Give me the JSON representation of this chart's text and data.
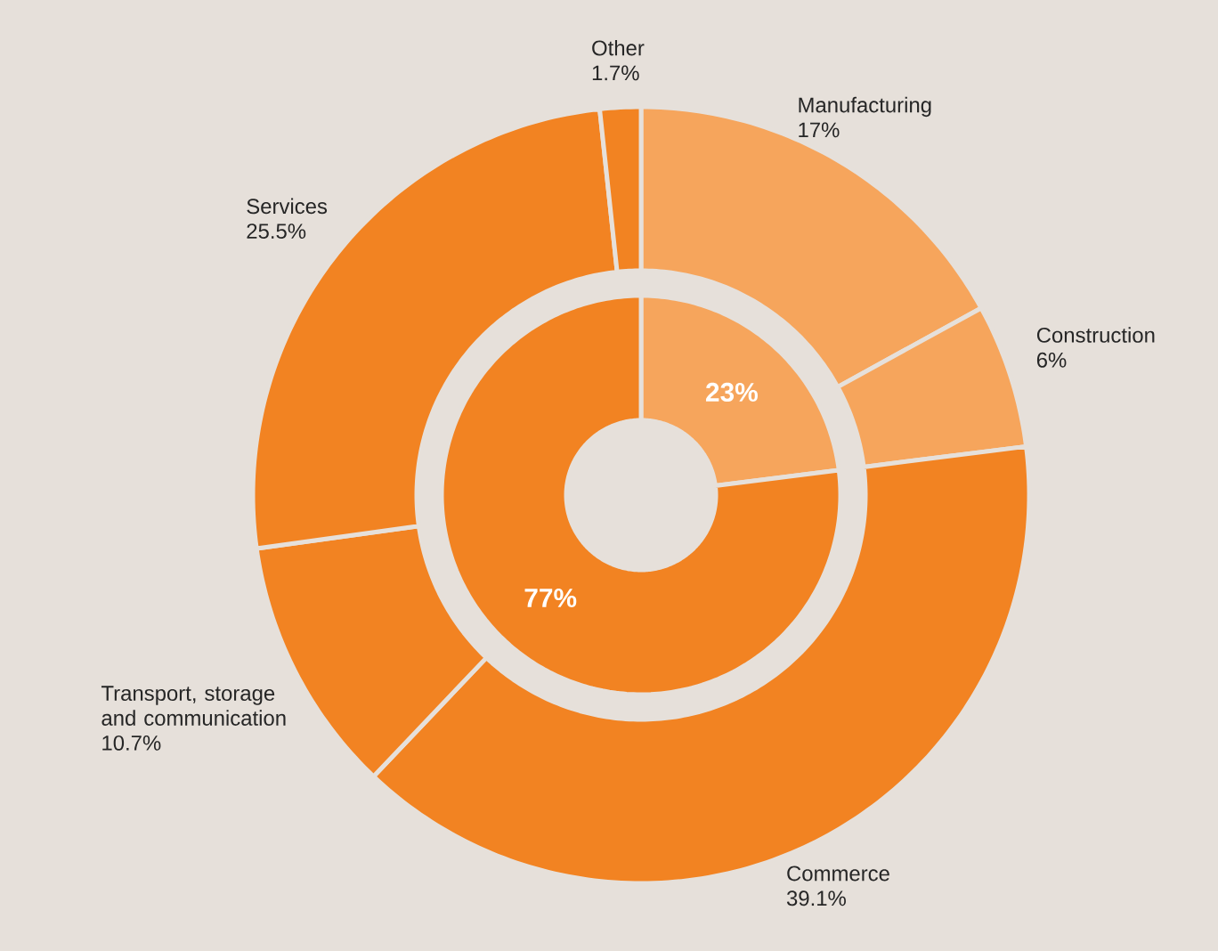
{
  "chart_data": [
    {
      "type": "donut",
      "categories": [
        "Manufacturing",
        "Construction",
        "Commerce",
        "Transport, storage and communication",
        "Services",
        "Other"
      ],
      "values": [
        17,
        6,
        39.1,
        10.7,
        25.5,
        1.7
      ],
      "colors": [
        "#f6a55c",
        "#f6a55c",
        "#f28322",
        "#f28322",
        "#f28322",
        "#f28322"
      ],
      "value_labels": [
        "17%",
        "6%",
        "39.1%",
        "10.7%",
        "25.5%",
        "1.7%"
      ]
    },
    {
      "type": "donut",
      "categories": [
        null,
        null
      ],
      "values": [
        23,
        77
      ],
      "colors": [
        "#f6a55c",
        "#f28322"
      ],
      "value_labels": [
        "23%",
        "77%"
      ]
    }
  ]
}
